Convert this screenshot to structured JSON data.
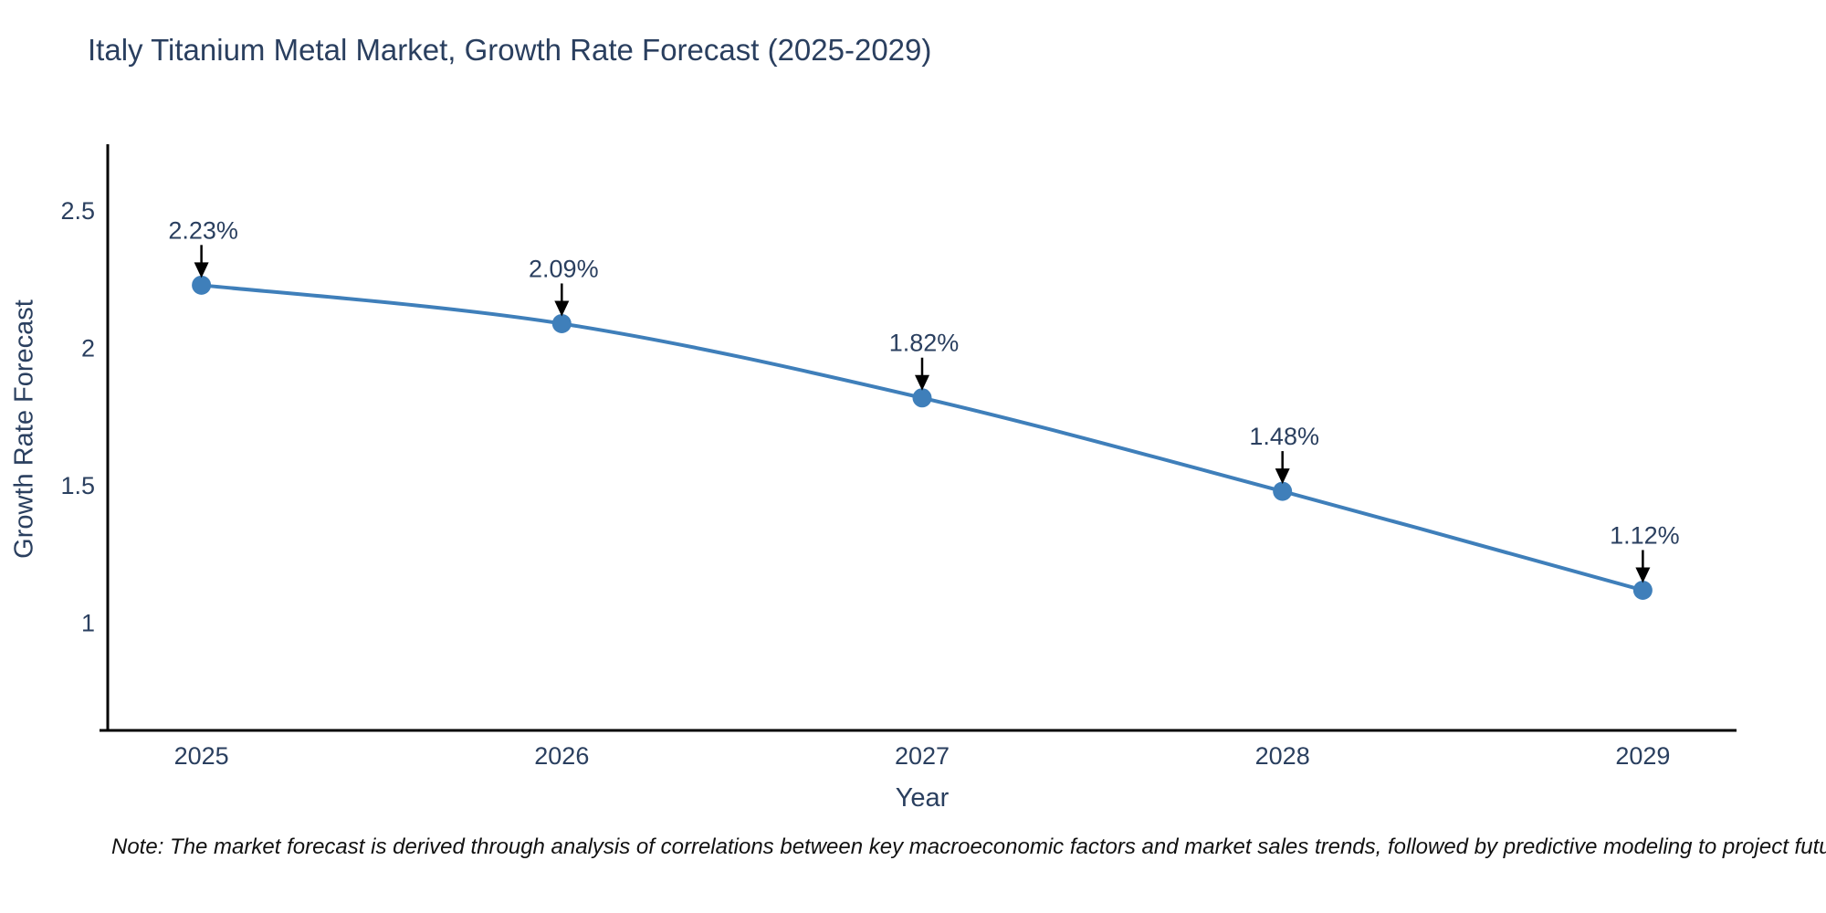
{
  "title": "Italy Titanium Metal Market, Growth Rate Forecast (2025-2029)",
  "note": "Note: The market forecast is derived through analysis of correlations between key macroeconomic factors and market sales trends, followed by predictive modeling to project future sales",
  "chart_data": {
    "type": "line",
    "title": "Italy Titanium Metal Market, Growth Rate Forecast (2025-2029)",
    "xlabel": "Year",
    "ylabel": "Growth Rate Forecast",
    "x": [
      2025,
      2026,
      2027,
      2028,
      2029
    ],
    "values": [
      2.23,
      2.09,
      1.82,
      1.48,
      1.12
    ],
    "point_labels": [
      "2.23%",
      "2.09%",
      "1.82%",
      "1.48%",
      "1.12%"
    ],
    "xtick_labels": [
      "2025",
      "2026",
      "2027",
      "2028",
      "2029"
    ],
    "yticks": [
      1,
      1.5,
      2,
      2.5
    ],
    "ytick_labels": [
      "1",
      "1.5",
      "2",
      "2.5"
    ],
    "xlim": [
      2024.74,
      2029.26
    ],
    "ylim": [
      0.61,
      2.736
    ],
    "grid": false,
    "legend": "none",
    "line_shape": "spline",
    "annotations": "value labels with black down-arrows above each point",
    "colors": {
      "line": "#3f7fba",
      "marker": "#3f7fba",
      "axis": "#000000",
      "text": "#2a3f5f",
      "arrow": "#000000",
      "note_text": "#111111",
      "background": "#ffffff"
    }
  }
}
